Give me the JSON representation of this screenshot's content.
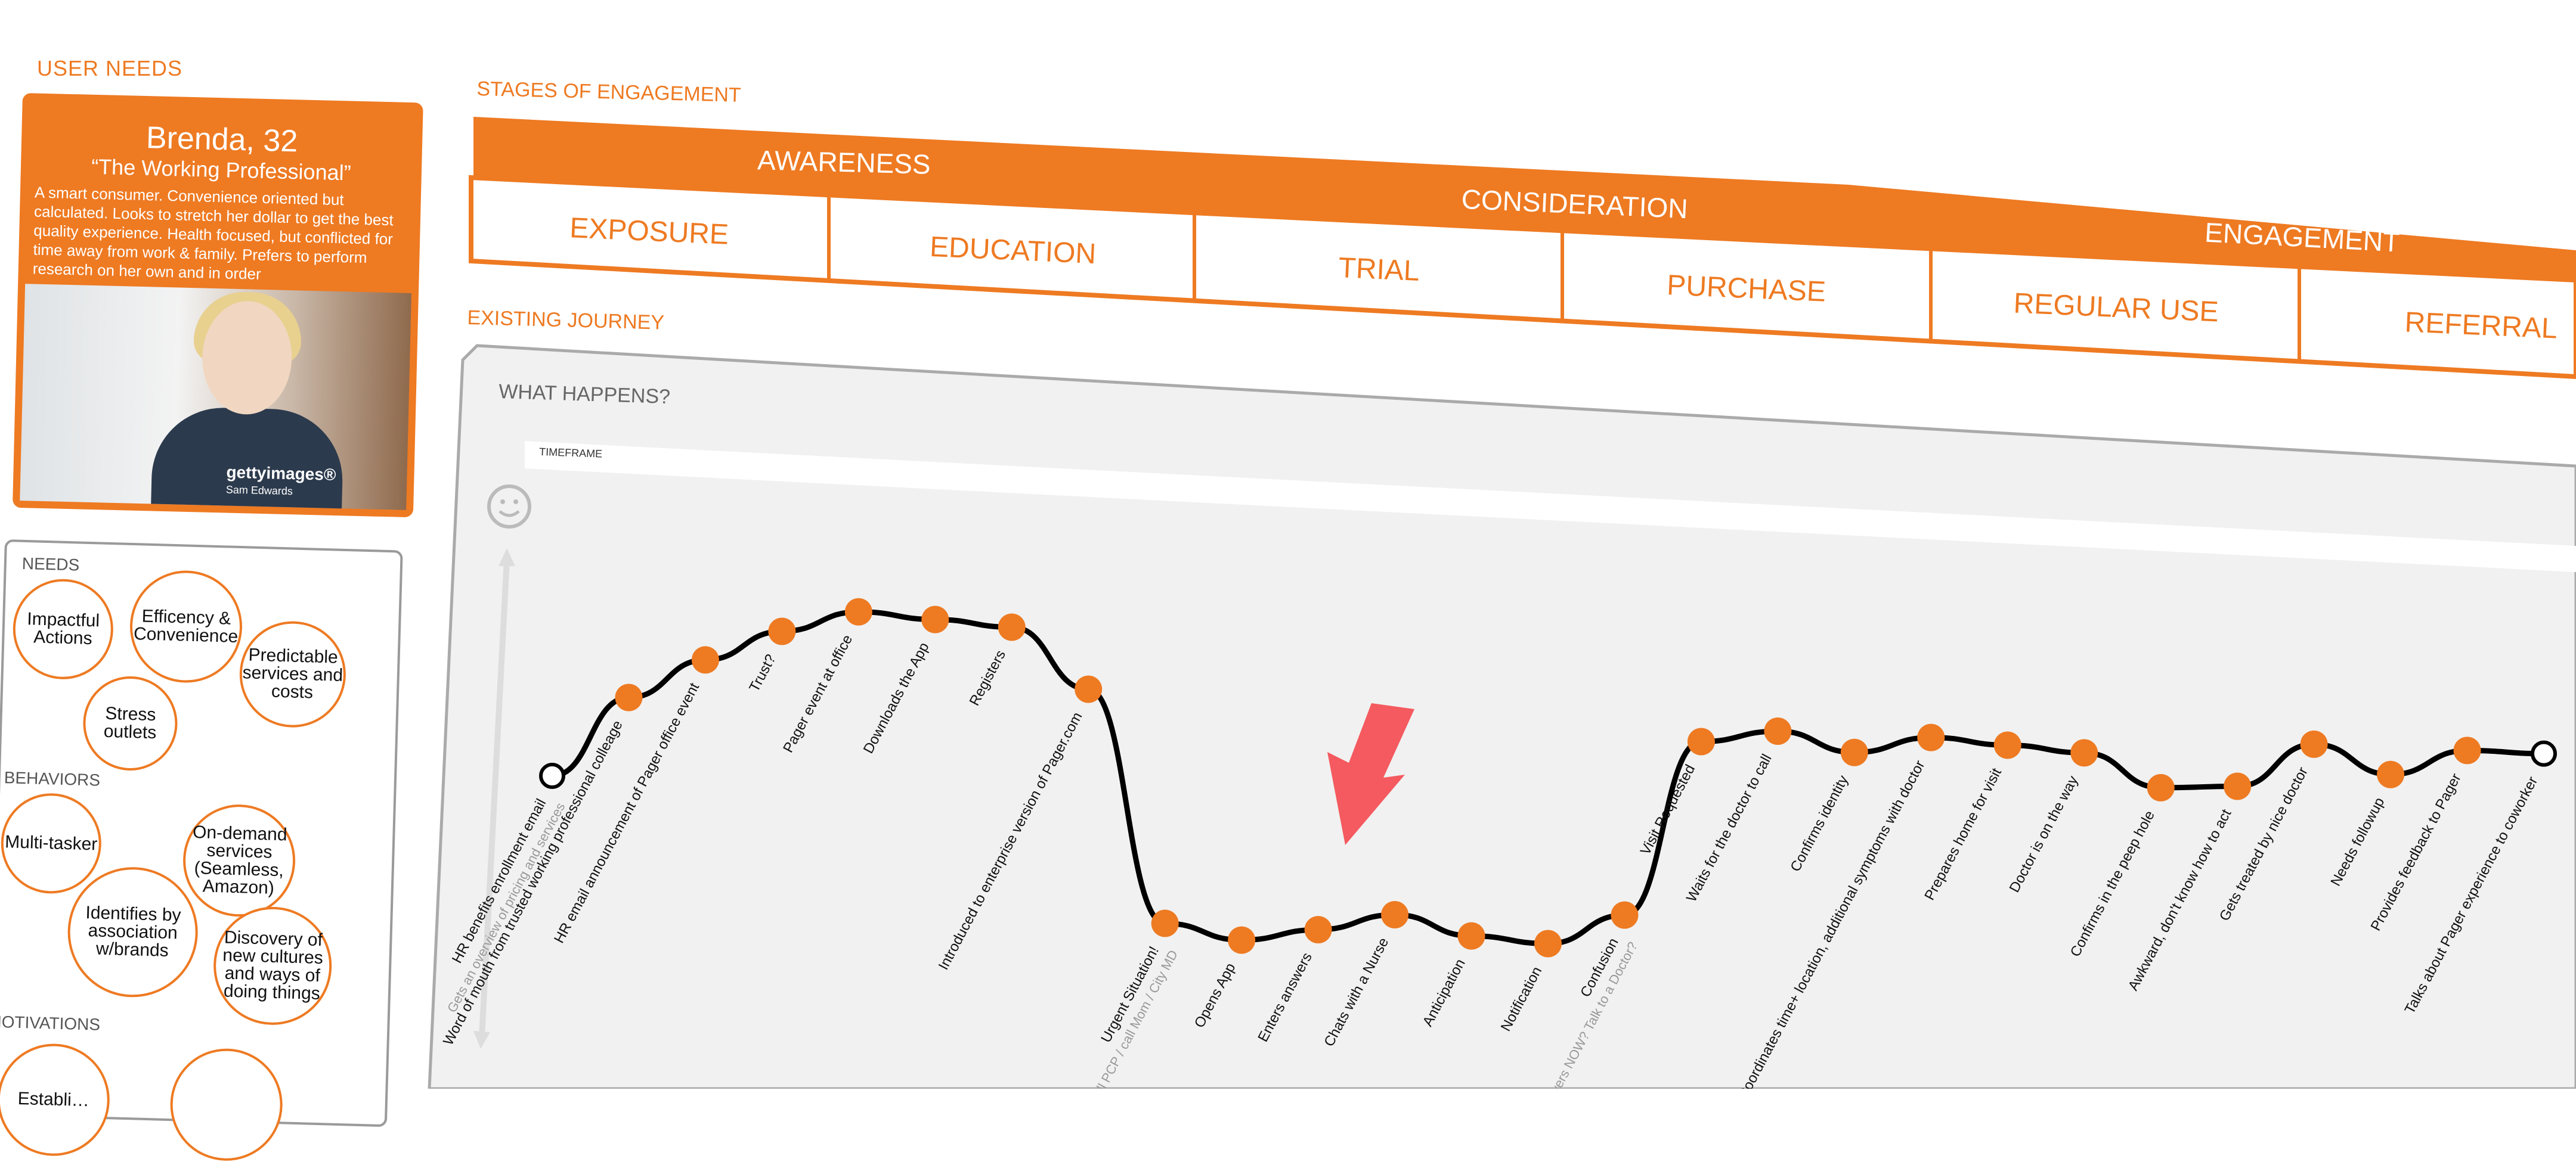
{
  "section_labels": {
    "user_needs": "USER NEEDS",
    "stages": "STAGES OF  ENGAGEMENT",
    "existing_journey": "EXISTING JOURNEY",
    "what_happens": "WHAT HAPPENS?",
    "timeframe": "TIMEFRAME"
  },
  "persona": {
    "name": "Brenda, 32",
    "quote": "“The Working Professional”",
    "bio": "A smart consumer. Convenience oriented but calculated. Looks to stretch her dollar to get the best quality experience. Health focused, but conflicted for time away from work & family. Prefers to perform research on her own and in order",
    "watermark": "gettyimages®",
    "watermark_credit": "Sam Edwards"
  },
  "needs": {
    "label": "NEEDS",
    "items": [
      "Impactful Actions",
      "Efficency & Convenience",
      "Predictable services and costs",
      "Stress outlets"
    ]
  },
  "behaviors": {
    "label": "BEHAVIORS",
    "items": [
      "Multi-tasker",
      "On-demand services (Seamless, Amazon)",
      "Identifies by association w/brands",
      "Discovery of new cultures and ways of doing things"
    ]
  },
  "motivations": {
    "label": "MOTIVATIONS",
    "items": [
      "Establi…",
      ""
    ]
  },
  "stage_groups": [
    "AWARENESS",
    "CONSIDERATION",
    "ENGAGEMENT"
  ],
  "stages": [
    "EXPOSURE",
    "EDUCATION",
    "TRIAL",
    "PURCHASE",
    "REGULAR USE",
    "REFERRAL"
  ],
  "journey_points": [
    {
      "label": "HR benefits enrollment email",
      "sub": "Gets an overview of pricing and services",
      "level": 0.55,
      "start": true
    },
    {
      "label": "Word of mouth from trusted working professional colleage",
      "level": 0.72
    },
    {
      "label": "HR email announcement of Pager office event",
      "level": 0.8
    },
    {
      "label": "Trust?",
      "level": 0.86
    },
    {
      "label": "Pager event at office",
      "level": 0.9
    },
    {
      "label": "Downloads the App",
      "level": 0.88
    },
    {
      "label": "Registers",
      "level": 0.86
    },
    {
      "label": "Introduced to enterprise version of Pager.com",
      "level": 0.72
    },
    {
      "label": "Urgent Situation!",
      "sub": "Call PCP / call Mom / City MD",
      "level": 0.2
    },
    {
      "label": "Opens App",
      "level": 0.16
    },
    {
      "label": "Enters answers",
      "level": 0.18
    },
    {
      "label": "Chats with a Nurse",
      "level": 0.21
    },
    {
      "label": "Anticipation",
      "level": 0.16
    },
    {
      "label": "Notification",
      "level": 0.14
    },
    {
      "label": "Confusion",
      "sub": "What is this for? Answers NOW? Talk to a Doctor?",
      "level": 0.2
    },
    {
      "label": "Visit Requested",
      "level": 0.58
    },
    {
      "label": "Waits for the doctor to call",
      "level": 0.6
    },
    {
      "label": "Confirms identity",
      "level": 0.55
    },
    {
      "label": "Coordinates time+ location, additional symptoms with doctor",
      "level": 0.58
    },
    {
      "label": "Prepares home for visit",
      "level": 0.56
    },
    {
      "label": "Doctor is on the way",
      "level": 0.54
    },
    {
      "label": "Confirms in the peep hole",
      "level": 0.46
    },
    {
      "label": "Awkward, don't know how to act",
      "level": 0.46
    },
    {
      "label": "Gets treated by nice doctor",
      "level": 0.55
    },
    {
      "label": "Needs followup",
      "level": 0.48
    },
    {
      "label": "Provides feedback to Pager",
      "level": 0.53
    },
    {
      "label": "Talks about Pager experience to coworker",
      "level": 0.52,
      "end": true
    }
  ],
  "colors": {
    "accent": "#ee7a22",
    "arrow": "#f45a5f",
    "panel_bg": "#f1f1f1",
    "line": "#000000"
  },
  "icons": {
    "emotion": "smiley-icon",
    "callout": "down-left-arrow-icon"
  }
}
